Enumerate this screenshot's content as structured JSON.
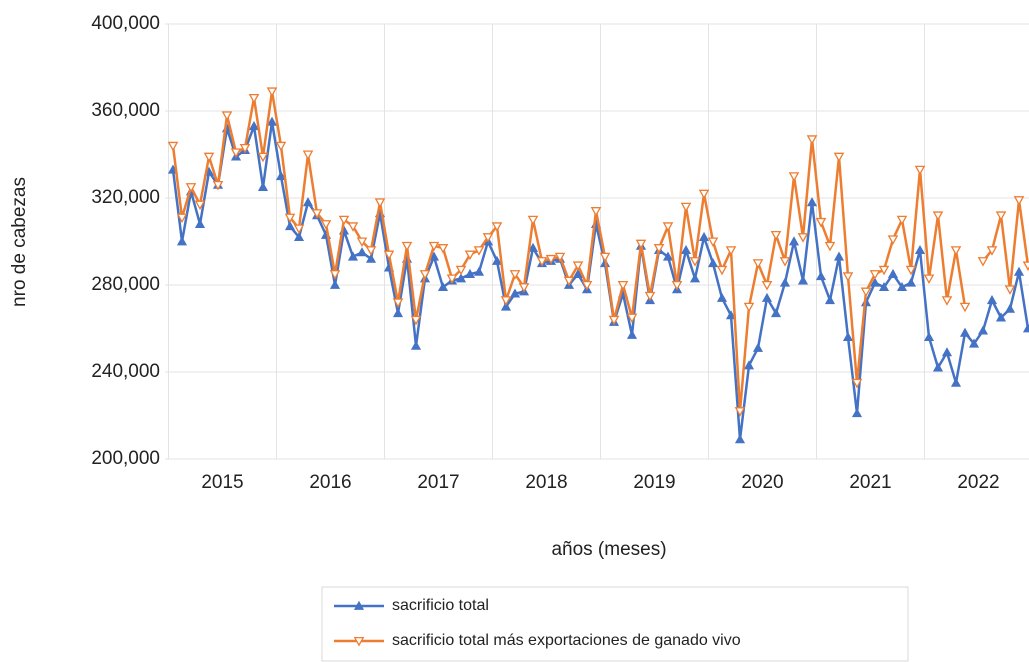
{
  "chart_data": {
    "type": "line",
    "x_label": "años (meses)",
    "y_label": "nro de cabezas",
    "categories": [
      null,
      null,
      null,
      null,
      null,
      "2015",
      null,
      null,
      null,
      null,
      null,
      null,
      null,
      null,
      null,
      null,
      null,
      "2016",
      null,
      null,
      null,
      null,
      null,
      null,
      null,
      null,
      null,
      null,
      null,
      "2017",
      null,
      null,
      null,
      null,
      null,
      null,
      null,
      null,
      null,
      null,
      null,
      "2018",
      null,
      null,
      null,
      null,
      null,
      null,
      null,
      null,
      null,
      null,
      null,
      "2019",
      null,
      null,
      null,
      null,
      null,
      null,
      null,
      null,
      null,
      null,
      null,
      "2020",
      null,
      null,
      null,
      null,
      null,
      null,
      null,
      null,
      null,
      null,
      null,
      "2021",
      null,
      null,
      null,
      null,
      null,
      null,
      null,
      null,
      null,
      null,
      null,
      "2022",
      null,
      null,
      null,
      null,
      null,
      null
    ],
    "series": [
      {
        "name": "sacrificio total",
        "color": "#4472c4",
        "marker": "triangle-up",
        "values": [
          333000,
          300000,
          323000,
          308000,
          332000,
          326000,
          352000,
          339000,
          342000,
          353000,
          325000,
          355000,
          330000,
          307000,
          302000,
          318000,
          312000,
          303000,
          280000,
          305000,
          293000,
          295000,
          292000,
          313000,
          288000,
          267000,
          292000,
          252000,
          283000,
          293000,
          279000,
          282000,
          283000,
          285000,
          286000,
          300000,
          291000,
          270000,
          276000,
          277000,
          297000,
          290000,
          291000,
          292000,
          280000,
          285000,
          278000,
          308000,
          290000,
          263000,
          276000,
          257000,
          298000,
          273000,
          296000,
          293000,
          278000,
          296000,
          283000,
          302000,
          290000,
          274000,
          266000,
          209000,
          243000,
          251000,
          274000,
          267000,
          281000,
          300000,
          282000,
          318000,
          284000,
          273000,
          293000,
          256000,
          221000,
          272000,
          281000,
          279000,
          285000,
          279000,
          281000,
          296000,
          256000,
          242000,
          249000,
          235000,
          258000,
          253000,
          259000,
          273000,
          265000,
          269000,
          286000,
          260000
        ]
      },
      {
        "name": "sacrificio total más exportaciones de ganado vivo",
        "color": "#ed7d31",
        "marker": "triangle-down-open",
        "values": [
          344000,
          311000,
          325000,
          317000,
          339000,
          326000,
          358000,
          341000,
          343000,
          366000,
          339000,
          369000,
          344000,
          311000,
          306000,
          340000,
          313000,
          308000,
          285000,
          310000,
          307000,
          300000,
          296000,
          318000,
          294000,
          272000,
          298000,
          264000,
          285000,
          298000,
          297000,
          283000,
          287000,
          294000,
          296000,
          302000,
          307000,
          273000,
          285000,
          279000,
          310000,
          291000,
          292000,
          293000,
          282000,
          289000,
          280000,
          314000,
          293000,
          264000,
          280000,
          265000,
          299000,
          275000,
          297000,
          307000,
          280000,
          316000,
          291000,
          322000,
          300000,
          287000,
          296000,
          222000,
          270000,
          290000,
          280000,
          303000,
          291000,
          330000,
          302000,
          347000,
          309000,
          298000,
          339000,
          284000,
          235000,
          277000,
          285000,
          287000,
          301000,
          310000,
          287000,
          333000,
          283000,
          312000,
          273000,
          296000,
          270000,
          null,
          291000,
          296000,
          312000,
          278000,
          319000,
          289000
        ]
      }
    ],
    "ylim": [
      200000,
      400000
    ],
    "yticks": [
      {
        "value": 200000,
        "label": "200,000"
      },
      {
        "value": 240000,
        "label": "240,000"
      },
      {
        "value": 280000,
        "label": "280,000"
      },
      {
        "value": 320000,
        "label": "320,000"
      },
      {
        "value": 360000,
        "label": "360,000"
      },
      {
        "value": 400000,
        "label": "400,000"
      }
    ],
    "grid": true,
    "legend": "bottom"
  }
}
